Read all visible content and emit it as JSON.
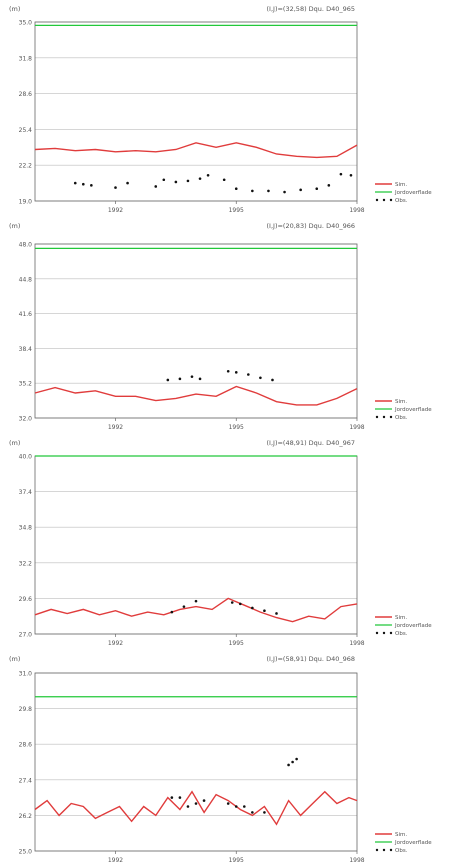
{
  "colors": {
    "sim": "#e03c3c",
    "surface": "#22c83a",
    "obs": "#111111",
    "axis": "#666666",
    "grid": "#bdbdbd"
  },
  "legend": [
    "Sim.",
    "Jordoverflade",
    "Obs."
  ],
  "chart_data": [
    {
      "type": "line",
      "unit": "(m)",
      "title": "(I,J)=(32,58) Dqu. D40_965",
      "ylim": [
        19.0,
        35.0
      ],
      "yticks": [
        "35.0",
        "31.8",
        "28.6",
        "25.4",
        "22.2",
        "19.0"
      ],
      "xlim": [
        1990.0,
        1998.0
      ],
      "xticks": [
        "1992",
        "1995",
        "1998"
      ],
      "surface": 34.7,
      "series": [
        {
          "name": "Sim.",
          "x": [
            1990.0,
            1990.5,
            1991.0,
            1991.5,
            1992.0,
            1992.5,
            1993.0,
            1993.5,
            1994.0,
            1994.5,
            1995.0,
            1995.5,
            1996.0,
            1996.5,
            1997.0,
            1997.5,
            1998.0
          ],
          "values": [
            23.6,
            23.7,
            23.5,
            23.6,
            23.4,
            23.5,
            23.4,
            23.6,
            24.2,
            23.8,
            24.2,
            23.8,
            23.2,
            23.0,
            22.9,
            23.0,
            24.0
          ]
        },
        {
          "name": "Obs.",
          "x": [
            1991.0,
            1991.2,
            1991.4,
            1992.0,
            1992.3,
            1993.0,
            1993.2,
            1993.5,
            1993.8,
            1994.1,
            1994.3,
            1994.7,
            1995.0,
            1995.4,
            1995.8,
            1996.2,
            1996.6,
            1997.0,
            1997.3,
            1997.6,
            1997.85
          ],
          "values": [
            20.6,
            20.5,
            20.4,
            20.2,
            20.6,
            20.3,
            20.9,
            20.7,
            20.8,
            21.0,
            21.3,
            20.9,
            20.1,
            19.9,
            19.9,
            19.8,
            20.0,
            20.1,
            20.4,
            21.4,
            21.3
          ]
        }
      ]
    },
    {
      "type": "line",
      "unit": "(m)",
      "title": "(I,J)=(20,83) Dqu. D40_966",
      "ylim": [
        32.0,
        48.0
      ],
      "yticks": [
        "48.0",
        "44.8",
        "41.6",
        "38.4",
        "35.2",
        "32.0"
      ],
      "xlim": [
        1990.0,
        1998.0
      ],
      "xticks": [
        "1992",
        "1995",
        "1998"
      ],
      "surface": 47.6,
      "series": [
        {
          "name": "Sim.",
          "x": [
            1990.0,
            1990.5,
            1991.0,
            1991.5,
            1992.0,
            1992.5,
            1993.0,
            1993.5,
            1994.0,
            1994.5,
            1995.0,
            1995.5,
            1996.0,
            1996.5,
            1997.0,
            1997.5,
            1998.0
          ],
          "values": [
            34.3,
            34.8,
            34.3,
            34.5,
            34.0,
            34.0,
            33.6,
            33.8,
            34.2,
            34.0,
            34.9,
            34.3,
            33.5,
            33.2,
            33.2,
            33.8,
            34.7
          ]
        },
        {
          "name": "Obs.",
          "x": [
            1993.3,
            1993.6,
            1993.9,
            1994.1,
            1994.8,
            1995.0,
            1995.3,
            1995.6,
            1995.9
          ],
          "values": [
            35.5,
            35.6,
            35.8,
            35.6,
            36.3,
            36.2,
            36.0,
            35.7,
            35.5
          ]
        }
      ]
    },
    {
      "type": "line",
      "unit": "(m)",
      "title": "(I,J)=(48,91) Dqu. D40_967",
      "ylim": [
        27.0,
        40.0
      ],
      "yticks": [
        "40.0",
        "37.4",
        "34.8",
        "32.2",
        "29.6",
        "27.0"
      ],
      "xlim": [
        1990.0,
        1998.0
      ],
      "xticks": [
        "1992",
        "1995",
        "1998"
      ],
      "surface": 40.0,
      "series": [
        {
          "name": "Sim.",
          "x": [
            1990.0,
            1990.4,
            1990.8,
            1991.2,
            1991.6,
            1992.0,
            1992.4,
            1992.8,
            1993.2,
            1993.6,
            1994.0,
            1994.4,
            1994.8,
            1995.2,
            1995.6,
            1996.0,
            1996.4,
            1996.8,
            1997.2,
            1997.6,
            1998.0
          ],
          "values": [
            28.4,
            28.8,
            28.5,
            28.8,
            28.4,
            28.7,
            28.3,
            28.6,
            28.4,
            28.8,
            29.0,
            28.8,
            29.6,
            29.1,
            28.6,
            28.2,
            27.9,
            28.3,
            28.1,
            29.0,
            29.2
          ]
        },
        {
          "name": "Obs.",
          "x": [
            1993.4,
            1993.7,
            1994.0,
            1994.9,
            1995.1,
            1995.4,
            1995.7,
            1996.0
          ],
          "values": [
            28.6,
            29.0,
            29.4,
            29.3,
            29.2,
            28.9,
            28.7,
            28.5
          ]
        }
      ]
    },
    {
      "type": "line",
      "unit": "(m)",
      "title": "(I,J)=(58,91) Dqu. D40_968",
      "ylim": [
        25.0,
        31.0
      ],
      "yticks": [
        "31.0",
        "29.8",
        "28.6",
        "27.4",
        "26.2",
        "25.0"
      ],
      "xlim": [
        1990.0,
        1998.0
      ],
      "xticks": [
        "1992",
        "1995",
        "1998"
      ],
      "surface": 30.2,
      "series": [
        {
          "name": "Sim.",
          "x": [
            1990.0,
            1990.3,
            1990.6,
            1990.9,
            1991.2,
            1991.5,
            1991.8,
            1992.1,
            1992.4,
            1992.7,
            1993.0,
            1993.3,
            1993.6,
            1993.9,
            1994.2,
            1994.5,
            1994.8,
            1995.1,
            1995.4,
            1995.7,
            1996.0,
            1996.3,
            1996.6,
            1996.9,
            1997.2,
            1997.5,
            1997.8,
            1998.0
          ],
          "values": [
            26.4,
            26.7,
            26.2,
            26.6,
            26.5,
            26.1,
            26.3,
            26.5,
            26.0,
            26.5,
            26.2,
            26.8,
            26.4,
            27.0,
            26.3,
            26.9,
            26.7,
            26.4,
            26.2,
            26.5,
            25.9,
            26.7,
            26.2,
            26.6,
            27.0,
            26.6,
            26.8,
            26.7
          ]
        },
        {
          "name": "Obs.",
          "x": [
            1993.4,
            1993.6,
            1993.8,
            1994.0,
            1994.2,
            1994.8,
            1995.0,
            1995.2,
            1995.4,
            1995.7,
            1996.3,
            1996.4,
            1996.5
          ],
          "values": [
            26.8,
            26.8,
            26.5,
            26.6,
            26.7,
            26.6,
            26.5,
            26.5,
            26.3,
            26.3,
            27.9,
            28.0,
            28.1
          ]
        }
      ]
    }
  ]
}
